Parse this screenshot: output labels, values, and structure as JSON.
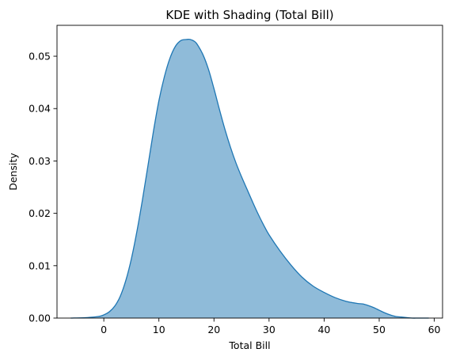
{
  "chart_data": {
    "type": "area",
    "title": "KDE with Shading (Total Bill)",
    "xlabel": "Total Bill",
    "ylabel": "Density",
    "xlim": [
      -8.5,
      61.5
    ],
    "ylim": [
      0,
      0.0559
    ],
    "xticks": [
      0,
      10,
      20,
      30,
      40,
      50,
      60
    ],
    "yticks": [
      0.0,
      0.01,
      0.02,
      0.03,
      0.04,
      0.05
    ],
    "ytick_labels": [
      "0.00",
      "0.01",
      "0.02",
      "0.03",
      "0.04",
      "0.05"
    ],
    "grid": false,
    "fill_color": "#1f77b4",
    "fill_alpha": 0.5,
    "line_color": "#1f77b4",
    "series": [
      {
        "x": [
          -6,
          -3,
          -1,
          0,
          1,
          2,
          3,
          4,
          5,
          6,
          7,
          8,
          9,
          10,
          11,
          12,
          13,
          14,
          15,
          15.7,
          16.5,
          17,
          18,
          19,
          20,
          21,
          22,
          23,
          24,
          25,
          26,
          27,
          28,
          29,
          30,
          32,
          34,
          36,
          38,
          40,
          42,
          44,
          46,
          47,
          48,
          49,
          50,
          51,
          52,
          53,
          54,
          55,
          56,
          57,
          58,
          59
        ],
        "y": [
          0.0,
          0.0001,
          0.0003,
          0.0006,
          0.0012,
          0.0023,
          0.0042,
          0.0072,
          0.0113,
          0.0165,
          0.0225,
          0.029,
          0.0356,
          0.0415,
          0.0461,
          0.0496,
          0.0519,
          0.053,
          0.0532,
          0.0532,
          0.0528,
          0.0522,
          0.0503,
          0.0475,
          0.0438,
          0.0398,
          0.036,
          0.0326,
          0.0296,
          0.027,
          0.0246,
          0.0222,
          0.0199,
          0.0178,
          0.0159,
          0.0128,
          0.0101,
          0.0078,
          0.0061,
          0.0049,
          0.0039,
          0.0032,
          0.0028,
          0.0027,
          0.0024,
          0.002,
          0.0015,
          0.001,
          0.0006,
          0.0003,
          0.0002,
          0.0001,
          0.0,
          0.0,
          0.0,
          0.0
        ]
      }
    ]
  }
}
